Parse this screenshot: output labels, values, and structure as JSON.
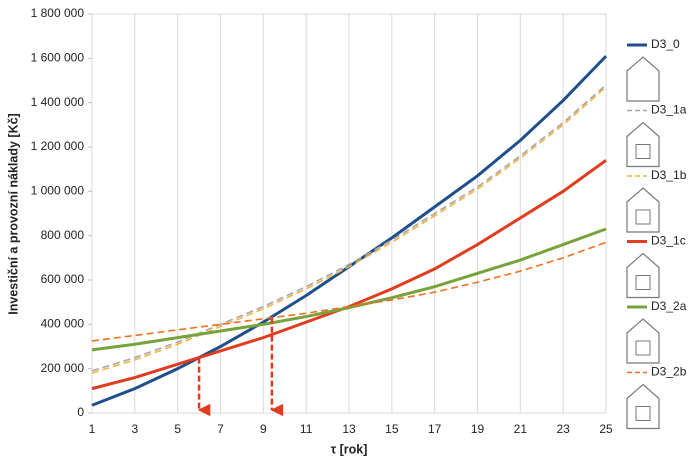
{
  "chart_data": {
    "type": "line",
    "x_label": "τ [rok]",
    "y_label": "Investiční a provozní náklady [Kč]",
    "x": [
      1,
      3,
      5,
      7,
      9,
      11,
      13,
      15,
      17,
      19,
      21,
      23,
      25
    ],
    "series": [
      {
        "name": "D3_0",
        "color": "#1f4e8c",
        "dash": "solid",
        "values": [
          35000,
          110000,
          200000,
          300000,
          410000,
          530000,
          660000,
          790000,
          930000,
          1070000,
          1230000,
          1410000,
          1610000
        ]
      },
      {
        "name": "D3_1a",
        "color": "#a6a6a6",
        "dash": "dashed",
        "values": [
          190000,
          250000,
          320000,
          400000,
          480000,
          570000,
          670000,
          780000,
          900000,
          1020000,
          1160000,
          1310000,
          1480000
        ]
      },
      {
        "name": "D3_1b",
        "color": "#f5b342",
        "dash": "dashed",
        "values": [
          180000,
          240000,
          310000,
          390000,
          470000,
          560000,
          660000,
          770000,
          890000,
          1010000,
          1150000,
          1300000,
          1470000
        ]
      },
      {
        "name": "D3_1c",
        "color": "#e03c1f",
        "dash": "solid",
        "values": [
          110000,
          160000,
          220000,
          280000,
          340000,
          410000,
          480000,
          560000,
          650000,
          760000,
          880000,
          1000000,
          1140000
        ]
      },
      {
        "name": "D3_2a",
        "color": "#77a33a",
        "dash": "solid",
        "values": [
          285000,
          310000,
          340000,
          370000,
          400000,
          435000,
          475000,
          520000,
          570000,
          630000,
          690000,
          760000,
          830000
        ]
      },
      {
        "name": "D3_2b",
        "color": "#f07020",
        "dash": "dashed",
        "values": [
          325000,
          350000,
          375000,
          400000,
          425000,
          450000,
          480000,
          510000,
          545000,
          590000,
          640000,
          700000,
          770000
        ]
      }
    ],
    "arrows": [
      {
        "x": 6,
        "y": 250000,
        "color": "#e03c1f"
      },
      {
        "x": 9.4,
        "y": 430000,
        "color": "#e03c1f"
      }
    ],
    "xlim": [
      1,
      25
    ],
    "xticks": [
      1,
      3,
      5,
      7,
      9,
      11,
      13,
      15,
      17,
      19,
      21,
      23,
      25
    ],
    "ylim": [
      0,
      1800000
    ],
    "yticks": [
      0,
      {
        "value": 200000,
        "label": "200 000"
      },
      {
        "value": 400000,
        "label": "400 000"
      },
      {
        "value": 600000,
        "label": "600 000"
      },
      {
        "value": 800000,
        "label": "800 000"
      },
      {
        "value": 1000000,
        "label": "1 000 000"
      },
      {
        "value": 1200000,
        "label": "1 200 000"
      },
      {
        "value": 1400000,
        "label": "1 400 000"
      },
      {
        "value": 1600000,
        "label": "1 600 000"
      },
      {
        "value": 1800000,
        "label": "1 800 000"
      }
    ],
    "grid": "x",
    "legend": "right"
  }
}
